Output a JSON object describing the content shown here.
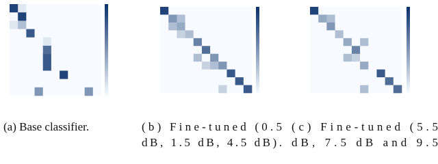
{
  "chart_data": [
    {
      "type": "heatmap",
      "color": "#08306b",
      "caption": [
        "(a) Base classifier."
      ],
      "z": [
        [
          0.9,
          0.1,
          0,
          0,
          0,
          0,
          0,
          0,
          0,
          0,
          0
        ],
        [
          0,
          0.9,
          0,
          0,
          0,
          0,
          0,
          0,
          0,
          0,
          0
        ],
        [
          0.1,
          0.3,
          0,
          0,
          0,
          0,
          0,
          0,
          0,
          0,
          0
        ],
        [
          0,
          0,
          0.8,
          0,
          0,
          0,
          0,
          0,
          0,
          0,
          0
        ],
        [
          0,
          0,
          0,
          0,
          0.1,
          0,
          0,
          0,
          0,
          0,
          0
        ],
        [
          0,
          0,
          0,
          0,
          0.7,
          0,
          0,
          0,
          0,
          0,
          0
        ],
        [
          0,
          0,
          0,
          0,
          0.8,
          0,
          0,
          0,
          0,
          0,
          0
        ],
        [
          0,
          0,
          0,
          0,
          0.8,
          0,
          0,
          0,
          0,
          0,
          0
        ],
        [
          0,
          0,
          0,
          0,
          0,
          0,
          0.9,
          0,
          0,
          0,
          0
        ],
        [
          0,
          0,
          0,
          0,
          0,
          0,
          0,
          0,
          0,
          0,
          0
        ],
        [
          0,
          0,
          0,
          0.5,
          0,
          0,
          0,
          0,
          0,
          0.5,
          0
        ]
      ]
    },
    {
      "type": "heatmap",
      "color": "#08306b",
      "caption": [
        "(b)  Fine-tuned  (0.5",
        "dB, 1.5 dB, 4.5 dB)."
      ],
      "z": [
        [
          0.9,
          0,
          0,
          0,
          0,
          0,
          0,
          0,
          0,
          0,
          0
        ],
        [
          0,
          0.5,
          0.3,
          0,
          0,
          0,
          0,
          0,
          0,
          0,
          0
        ],
        [
          0,
          0.3,
          0.4,
          0,
          0,
          0,
          0,
          0,
          0,
          0,
          0
        ],
        [
          0,
          0,
          0.2,
          0.3,
          0,
          0,
          0,
          0,
          0,
          0,
          0
        ],
        [
          0,
          0,
          0,
          0,
          0.6,
          0,
          0,
          0,
          0,
          0,
          0
        ],
        [
          0,
          0,
          0,
          0,
          0,
          0.7,
          0,
          0,
          0,
          0,
          0
        ],
        [
          0,
          0,
          0,
          0,
          0.3,
          0,
          0.5,
          0,
          0,
          0,
          0
        ],
        [
          0,
          0,
          0,
          0,
          0,
          0.2,
          0.3,
          0.5,
          0,
          0,
          0
        ],
        [
          0,
          0,
          0,
          0,
          0,
          0,
          0,
          0,
          0.8,
          0,
          0
        ],
        [
          0,
          0,
          0,
          0,
          0,
          0,
          0,
          0,
          0,
          0.8,
          0
        ],
        [
          0,
          0,
          0,
          0,
          0,
          0,
          0,
          0.2,
          0,
          0,
          0.8
        ]
      ]
    },
    {
      "type": "heatmap",
      "color": "#08306b",
      "caption": [
        "(c)  Fine-tuned  (5.5",
        "dB,  7.5  dB  and  9.5"
      ],
      "z": [
        [
          0.9,
          0,
          0,
          0,
          0,
          0,
          0,
          0,
          0,
          0,
          0
        ],
        [
          0,
          0.4,
          0.3,
          0,
          0,
          0,
          0,
          0,
          0,
          0,
          0
        ],
        [
          0,
          0,
          0.5,
          0,
          0,
          0,
          0,
          0,
          0,
          0,
          0
        ],
        [
          0,
          0,
          0,
          0.3,
          0,
          0,
          0,
          0,
          0,
          0,
          0
        ],
        [
          0,
          0,
          0,
          0,
          0.4,
          0,
          0.3,
          0,
          0,
          0,
          0
        ],
        [
          0,
          0,
          0,
          0,
          0,
          0.6,
          0,
          0,
          0,
          0,
          0
        ],
        [
          0,
          0,
          0,
          0,
          0.3,
          0.2,
          0,
          0,
          0,
          0,
          0
        ],
        [
          0,
          0,
          0,
          0,
          0,
          0,
          0.4,
          0,
          0,
          0,
          0
        ],
        [
          0,
          0,
          0,
          0,
          0,
          0,
          0,
          0,
          0.8,
          0,
          0
        ],
        [
          0,
          0,
          0,
          0,
          0,
          0,
          0,
          0,
          0,
          0.7,
          0
        ],
        [
          0,
          0,
          0,
          0,
          0,
          0,
          0.3,
          0,
          0,
          0,
          0.7
        ]
      ]
    }
  ]
}
